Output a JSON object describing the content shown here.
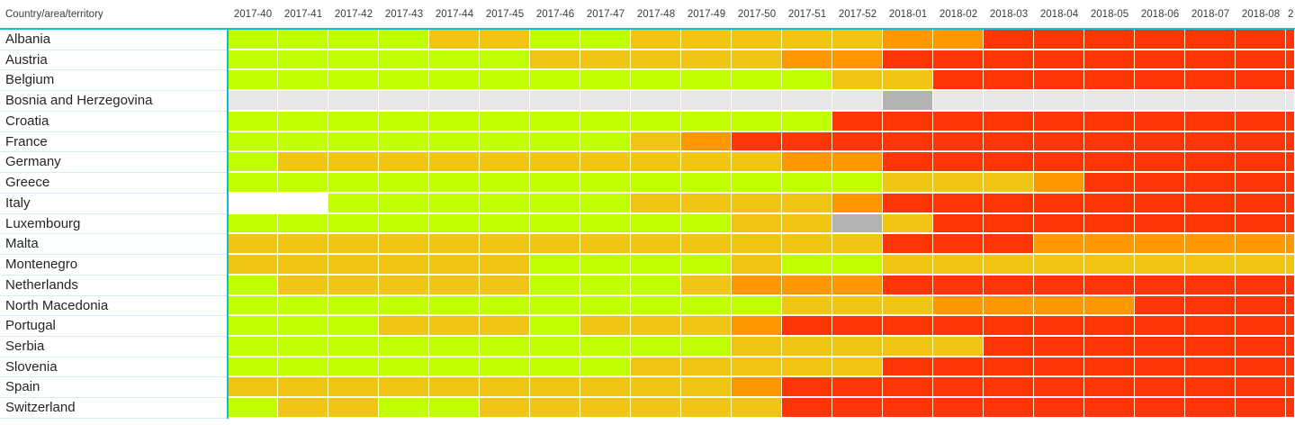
{
  "colors": {
    "accent": "#14BACD",
    "header_text": "#3C3C3C",
    "label_text": "#252525",
    "row_divider": "#D6ECF5",
    "grid_gap": "#FFFFFF"
  },
  "chart_data": {
    "type": "heatmap",
    "corner_label": "Country/area/territory",
    "x_categories": [
      "2017-40",
      "2017-41",
      "2017-42",
      "2017-43",
      "2017-44",
      "2017-45",
      "2017-46",
      "2017-47",
      "2017-48",
      "2017-49",
      "2017-50",
      "2017-51",
      "2017-52",
      "2018-01",
      "2018-02",
      "2018-03",
      "2018-04",
      "2018-05",
      "2018-06",
      "2018-07",
      "2018-08"
    ],
    "x_partial_label": "2",
    "y_categories": [
      "Albania",
      "Austria",
      "Belgium",
      "Bosnia and Herzegovina",
      "Croatia",
      "France",
      "Germany",
      "Greece",
      "Italy",
      "Luxembourg",
      "Malta",
      "Montenegro",
      "Netherlands",
      "North Macedonia",
      "Portugal",
      "Serbia",
      "Slovenia",
      "Spain",
      "Switzerland"
    ],
    "palette": {
      "G": "#BFFF00",
      "Y": "#F0C513",
      "O": "#FF9800",
      "R": "#FF3505",
      "L": "#E7E7E7",
      "D": "#B3B3B3",
      "W": "#FFFFFF"
    },
    "cells": [
      [
        "G",
        "G",
        "G",
        "G",
        "Y",
        "Y",
        "G",
        "G",
        "Y",
        "Y",
        "Y",
        "Y",
        "Y",
        "O",
        "O",
        "R",
        "R",
        "R",
        "R",
        "R",
        "R",
        "R"
      ],
      [
        "G",
        "G",
        "G",
        "G",
        "G",
        "G",
        "Y",
        "Y",
        "Y",
        "Y",
        "Y",
        "O",
        "O",
        "R",
        "R",
        "R",
        "R",
        "R",
        "R",
        "R",
        "R",
        "R"
      ],
      [
        "G",
        "G",
        "G",
        "G",
        "G",
        "G",
        "G",
        "G",
        "G",
        "G",
        "G",
        "G",
        "Y",
        "Y",
        "R",
        "R",
        "R",
        "R",
        "R",
        "R",
        "R",
        "R"
      ],
      [
        "L",
        "L",
        "L",
        "L",
        "L",
        "L",
        "L",
        "L",
        "L",
        "L",
        "L",
        "L",
        "L",
        "D",
        "L",
        "L",
        "L",
        "L",
        "L",
        "L",
        "L",
        "L"
      ],
      [
        "G",
        "G",
        "G",
        "G",
        "G",
        "G",
        "G",
        "G",
        "G",
        "G",
        "G",
        "G",
        "R",
        "R",
        "R",
        "R",
        "R",
        "R",
        "R",
        "R",
        "R",
        "R"
      ],
      [
        "G",
        "G",
        "G",
        "G",
        "G",
        "G",
        "G",
        "G",
        "Y",
        "O",
        "R",
        "R",
        "R",
        "R",
        "R",
        "R",
        "R",
        "R",
        "R",
        "R",
        "R",
        "R"
      ],
      [
        "G",
        "Y",
        "Y",
        "Y",
        "Y",
        "Y",
        "Y",
        "Y",
        "Y",
        "Y",
        "Y",
        "O",
        "O",
        "R",
        "R",
        "R",
        "R",
        "R",
        "R",
        "R",
        "R",
        "R"
      ],
      [
        "G",
        "G",
        "G",
        "G",
        "G",
        "G",
        "G",
        "G",
        "G",
        "G",
        "G",
        "G",
        "G",
        "Y",
        "Y",
        "Y",
        "O",
        "R",
        "R",
        "R",
        "R",
        "R"
      ],
      [
        "W",
        "W",
        "G",
        "G",
        "G",
        "G",
        "G",
        "G",
        "Y",
        "Y",
        "Y",
        "Y",
        "O",
        "R",
        "R",
        "R",
        "R",
        "R",
        "R",
        "R",
        "R",
        "R"
      ],
      [
        "G",
        "G",
        "G",
        "G",
        "G",
        "G",
        "G",
        "G",
        "G",
        "G",
        "Y",
        "Y",
        "D",
        "Y",
        "R",
        "R",
        "R",
        "R",
        "R",
        "R",
        "R",
        "R"
      ],
      [
        "Y",
        "Y",
        "Y",
        "Y",
        "Y",
        "Y",
        "Y",
        "Y",
        "Y",
        "Y",
        "Y",
        "Y",
        "Y",
        "R",
        "R",
        "R",
        "O",
        "O",
        "O",
        "O",
        "O",
        "O"
      ],
      [
        "Y",
        "Y",
        "Y",
        "Y",
        "Y",
        "Y",
        "G",
        "G",
        "G",
        "G",
        "Y",
        "G",
        "G",
        "Y",
        "Y",
        "Y",
        "Y",
        "Y",
        "Y",
        "Y",
        "Y",
        "Y"
      ],
      [
        "G",
        "Y",
        "Y",
        "Y",
        "Y",
        "Y",
        "G",
        "G",
        "G",
        "Y",
        "O",
        "O",
        "O",
        "R",
        "R",
        "R",
        "R",
        "R",
        "R",
        "R",
        "R",
        "R"
      ],
      [
        "G",
        "G",
        "G",
        "G",
        "G",
        "G",
        "G",
        "G",
        "G",
        "G",
        "G",
        "Y",
        "Y",
        "Y",
        "O",
        "O",
        "O",
        "O",
        "R",
        "R",
        "R",
        "R"
      ],
      [
        "G",
        "G",
        "G",
        "Y",
        "Y",
        "Y",
        "G",
        "Y",
        "Y",
        "Y",
        "O",
        "R",
        "R",
        "R",
        "R",
        "R",
        "R",
        "R",
        "R",
        "R",
        "R",
        "R"
      ],
      [
        "G",
        "G",
        "G",
        "G",
        "G",
        "G",
        "G",
        "G",
        "G",
        "G",
        "Y",
        "Y",
        "Y",
        "Y",
        "Y",
        "R",
        "R",
        "R",
        "R",
        "R",
        "R",
        "R"
      ],
      [
        "G",
        "G",
        "G",
        "G",
        "G",
        "G",
        "G",
        "G",
        "Y",
        "Y",
        "Y",
        "Y",
        "Y",
        "R",
        "R",
        "R",
        "R",
        "R",
        "R",
        "R",
        "R",
        "R"
      ],
      [
        "Y",
        "Y",
        "Y",
        "Y",
        "Y",
        "Y",
        "Y",
        "Y",
        "Y",
        "Y",
        "O",
        "R",
        "R",
        "R",
        "R",
        "R",
        "R",
        "R",
        "R",
        "R",
        "R",
        "R"
      ],
      [
        "G",
        "Y",
        "Y",
        "G",
        "G",
        "Y",
        "Y",
        "Y",
        "Y",
        "Y",
        "Y",
        "R",
        "R",
        "R",
        "R",
        "R",
        "R",
        "R",
        "R",
        "R",
        "R",
        "R"
      ]
    ]
  }
}
